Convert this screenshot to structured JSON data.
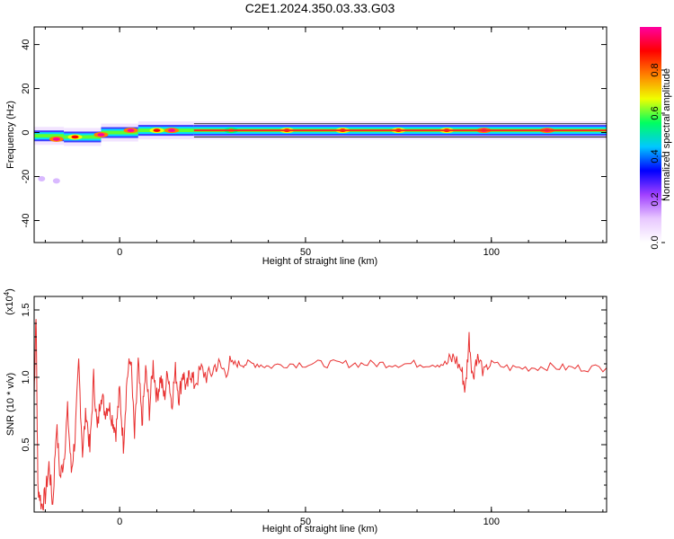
{
  "title": "C2E1.2024.350.03.33.G03",
  "chart_data": [
    {
      "type": "heatmap",
      "xlabel": "Height of straight line (km)",
      "ylabel": "Frequency (Hz)",
      "xlim": [
        -23,
        131
      ],
      "ylim": [
        -50,
        48
      ],
      "x_ticks": [
        0,
        50,
        100
      ],
      "y_ticks": [
        40,
        20,
        0,
        -20,
        -40
      ],
      "colorbar": {
        "label": "Normalized spectral amplitude",
        "range": [
          0,
          1
        ],
        "ticks": [
          "0.0",
          "0.2",
          "0.4",
          "0.6",
          "0.8"
        ],
        "colors": [
          "#ffffff",
          "#e8c8ff",
          "#a040ff",
          "#0000ff",
          "#00c8ff",
          "#00ff60",
          "#f0ff00",
          "#ff8000",
          "#ff0000",
          "#ff00a0"
        ]
      },
      "band": {
        "center_freq_hz": [
          {
            "x": -23,
            "y": 0
          },
          {
            "x": -15,
            "y": -3
          },
          {
            "x": -5,
            "y": -1
          },
          {
            "x": 5,
            "y": 1
          },
          {
            "x": 20,
            "y": 1
          },
          {
            "x": 131,
            "y": 1
          }
        ],
        "blobs": [
          {
            "x": -17,
            "y": -3,
            "amp": 1.0
          },
          {
            "x": -12,
            "y": -2,
            "amp": 0.9
          },
          {
            "x": -5,
            "y": -1,
            "amp": 1.0
          },
          {
            "x": 3,
            "y": 1,
            "amp": 1.0
          },
          {
            "x": 10,
            "y": 1,
            "amp": 0.9
          },
          {
            "x": 14,
            "y": 1,
            "amp": 1.0
          },
          {
            "x": 30,
            "y": 1,
            "amp": 0.8
          },
          {
            "x": 45,
            "y": 1,
            "amp": 0.9
          },
          {
            "x": 60,
            "y": 1,
            "amp": 0.9
          },
          {
            "x": 75,
            "y": 1,
            "amp": 0.9
          },
          {
            "x": 88,
            "y": 1,
            "amp": 0.9
          },
          {
            "x": 98,
            "y": 1,
            "amp": 1.0
          },
          {
            "x": 115,
            "y": 1,
            "amp": 1.0
          }
        ],
        "spurious": [
          {
            "x": -21,
            "y": -21,
            "amp": 0.15
          },
          {
            "x": -17,
            "y": -22,
            "amp": 0.15
          }
        ]
      }
    },
    {
      "type": "line",
      "xlabel": "Height of straight line (km)",
      "ylabel": "SNR (10 * v/v)",
      "y_multiplier": "(x10",
      "y_multiplier_exp": "4",
      "xlim": [
        -23,
        131
      ],
      "ylim": [
        0.0,
        1.6
      ],
      "x_ticks": [
        0,
        50,
        100
      ],
      "y_ticks": [
        "1.5",
        "1.0",
        "0.5"
      ],
      "series": [
        {
          "color": "#e83030",
          "points": [
            [
              -23,
              0.85
            ],
            [
              -22.5,
              1.5
            ],
            [
              -22,
              0.2
            ],
            [
              -21,
              0.05
            ],
            [
              -20,
              0.12
            ],
            [
              -19,
              0.35
            ],
            [
              -18,
              0.05
            ],
            [
              -17,
              0.65
            ],
            [
              -16,
              0.25
            ],
            [
              -15,
              0.4
            ],
            [
              -14,
              0.75
            ],
            [
              -13,
              0.3
            ],
            [
              -12,
              0.55
            ],
            [
              -11,
              1.1
            ],
            [
              -10,
              0.45
            ],
            [
              -9,
              0.75
            ],
            [
              -8,
              0.45
            ],
            [
              -7,
              1.0
            ],
            [
              -6,
              0.6
            ],
            [
              -5,
              0.9
            ],
            [
              -4,
              0.75
            ],
            [
              -3,
              0.8
            ],
            [
              -2,
              0.7
            ],
            [
              -1,
              0.6
            ],
            [
              0,
              0.9
            ],
            [
              1,
              0.5
            ],
            [
              2,
              1.0
            ],
            [
              3,
              1.15
            ],
            [
              4,
              0.55
            ],
            [
              5,
              1.1
            ],
            [
              6,
              0.65
            ],
            [
              7,
              1.05
            ],
            [
              8,
              0.75
            ],
            [
              9,
              1.1
            ],
            [
              10,
              0.85
            ],
            [
              11,
              1.0
            ],
            [
              12,
              0.85
            ],
            [
              13,
              1.05
            ],
            [
              14,
              0.8
            ],
            [
              15,
              1.05
            ],
            [
              16,
              0.85
            ],
            [
              17,
              1.05
            ],
            [
              18,
              0.9
            ],
            [
              19,
              1.05
            ],
            [
              20,
              0.95
            ],
            [
              22,
              1.05
            ],
            [
              24,
              1.0
            ],
            [
              26,
              1.1
            ],
            [
              28,
              1.05
            ],
            [
              30,
              1.1
            ],
            [
              32,
              1.1
            ],
            [
              34,
              1.1
            ],
            [
              37,
              1.1
            ],
            [
              40,
              1.08
            ],
            [
              45,
              1.1
            ],
            [
              50,
              1.1
            ],
            [
              55,
              1.1
            ],
            [
              60,
              1.1
            ],
            [
              65,
              1.1
            ],
            [
              70,
              1.1
            ],
            [
              75,
              1.1
            ],
            [
              80,
              1.1
            ],
            [
              85,
              1.1
            ],
            [
              88,
              1.1
            ],
            [
              90,
              1.15
            ],
            [
              92,
              1.05
            ],
            [
              93,
              0.9
            ],
            [
              94,
              1.3
            ],
            [
              95,
              1.0
            ],
            [
              96,
              1.15
            ],
            [
              98,
              1.05
            ],
            [
              100,
              1.1
            ],
            [
              105,
              1.07
            ],
            [
              110,
              1.07
            ],
            [
              115,
              1.08
            ],
            [
              120,
              1.07
            ],
            [
              125,
              1.07
            ],
            [
              131,
              1.07
            ]
          ]
        }
      ]
    }
  ]
}
